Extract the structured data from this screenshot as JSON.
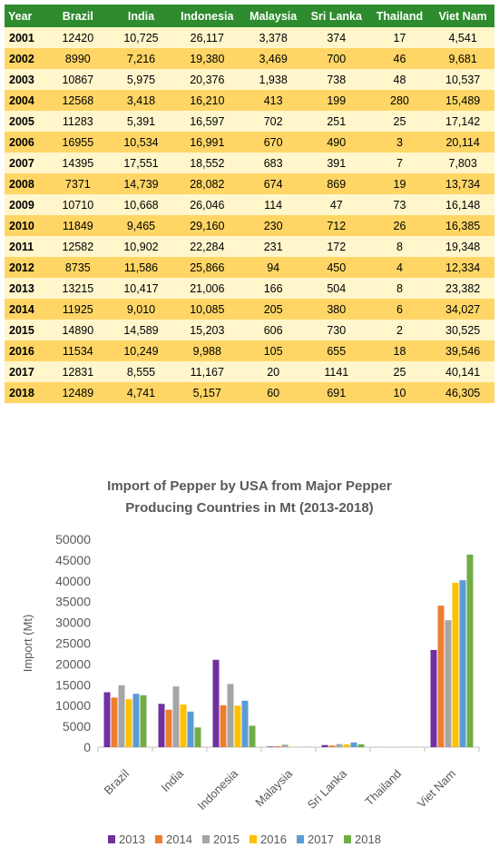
{
  "table": {
    "headers": [
      "Year",
      "Brazil",
      "India",
      "Indonesia",
      "Malaysia",
      "Sri Lanka",
      "Thailand",
      "Viet Nam"
    ],
    "rows": [
      [
        "2001",
        "12420",
        "10,725",
        "26,117",
        "3,378",
        "374",
        "17",
        "4,541"
      ],
      [
        "2002",
        "8990",
        "7,216",
        "19,380",
        "3,469",
        "700",
        "46",
        "9,681"
      ],
      [
        "2003",
        "10867",
        "5,975",
        "20,376",
        "1,938",
        "738",
        "48",
        "10,537"
      ],
      [
        "2004",
        "12568",
        "3,418",
        "16,210",
        "413",
        "199",
        "280",
        "15,489"
      ],
      [
        "2005",
        "11283",
        "5,391",
        "16,597",
        "702",
        "251",
        "25",
        "17,142"
      ],
      [
        "2006",
        "16955",
        "10,534",
        "16,991",
        "670",
        "490",
        "3",
        "20,114"
      ],
      [
        "2007",
        "14395",
        "17,551",
        "18,552",
        "683",
        "391",
        "7",
        "7,803"
      ],
      [
        "2008",
        "7371",
        "14,739",
        "28,082",
        "674",
        "869",
        "19",
        "13,734"
      ],
      [
        "2009",
        "10710",
        "10,668",
        "26,046",
        "114",
        "47",
        "73",
        "16,148"
      ],
      [
        "2010",
        "11849",
        "9,465",
        "29,160",
        "230",
        "712",
        "26",
        "16,385"
      ],
      [
        "2011",
        "12582",
        "10,902",
        "22,284",
        "231",
        "172",
        "8",
        "19,348"
      ],
      [
        "2012",
        "8735",
        "11,586",
        "25,866",
        "94",
        "450",
        "4",
        "12,334"
      ],
      [
        "2013",
        "13215",
        "10,417",
        "21,006",
        "166",
        "504",
        "8",
        "23,382"
      ],
      [
        "2014",
        "11925",
        "9,010",
        "10,085",
        "205",
        "380",
        "6",
        "34,027"
      ],
      [
        "2015",
        "14890",
        "14,589",
        "15,203",
        "606",
        "730",
        "2",
        "30,525"
      ],
      [
        "2016",
        "11534",
        "10,249",
        "9,988",
        "105",
        "655",
        "18",
        "39,546"
      ],
      [
        "2017",
        "12831",
        "8,555",
        "11,167",
        "20",
        "1141",
        "25",
        "40,141"
      ],
      [
        "2018",
        "12489",
        "4,741",
        "5,157",
        "60",
        "691",
        "10",
        "46,305"
      ]
    ]
  },
  "chart_data": {
    "type": "bar",
    "title": "Import of Pepper by USA from Major Pepper Producing Countries in Mt (2013-2018)",
    "title_lines": [
      "Import of Pepper by USA from Major Pepper",
      "Producing Countries in Mt (2013-2018)"
    ],
    "ylabel": "Import (Mt)",
    "xlabel": "",
    "ylim": [
      0,
      50000
    ],
    "yticks": [
      0,
      5000,
      10000,
      15000,
      20000,
      25000,
      30000,
      35000,
      40000,
      45000,
      50000
    ],
    "grid": false,
    "legend": "bottom",
    "categories": [
      "Brazil",
      "India",
      "Indonesia",
      "Malaysia",
      "Sri Lanka",
      "Thailand",
      "Viet Nam"
    ],
    "series": [
      {
        "name": "2013",
        "color": "#7030a0",
        "values": [
          13215,
          10417,
          21006,
          166,
          504,
          8,
          23382
        ]
      },
      {
        "name": "2014",
        "color": "#ed7d31",
        "values": [
          11925,
          9010,
          10085,
          205,
          380,
          6,
          34027
        ]
      },
      {
        "name": "2015",
        "color": "#a5a5a5",
        "values": [
          14890,
          14589,
          15203,
          606,
          730,
          2,
          30525
        ]
      },
      {
        "name": "2016",
        "color": "#ffc000",
        "values": [
          11534,
          10249,
          9988,
          105,
          655,
          18,
          39546
        ]
      },
      {
        "name": "2017",
        "color": "#5b9bd5",
        "values": [
          12831,
          8555,
          11167,
          20,
          1141,
          25,
          40141
        ]
      },
      {
        "name": "2018",
        "color": "#70ad47",
        "values": [
          12489,
          4741,
          5157,
          60,
          691,
          10,
          46305
        ]
      }
    ]
  }
}
